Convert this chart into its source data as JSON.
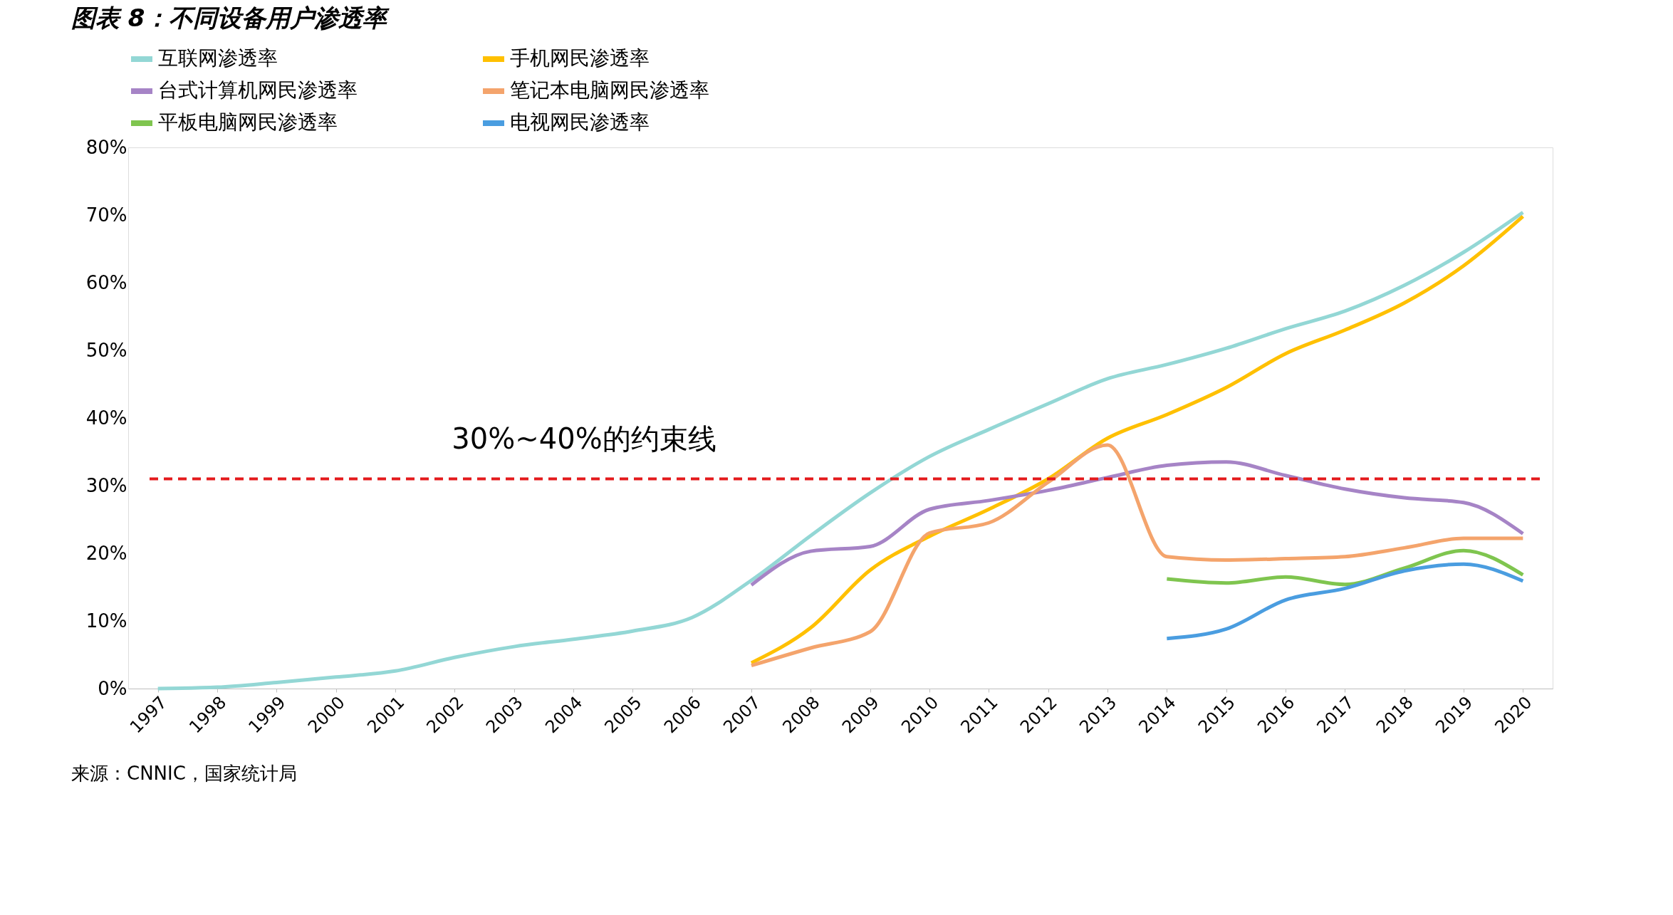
{
  "chart_data": {
    "type": "line",
    "title": "图表 8：不同设备用户渗透率",
    "categories": [
      "1997",
      "1998",
      "1999",
      "2000",
      "2001",
      "2002",
      "2003",
      "2004",
      "2005",
      "2006",
      "2007",
      "2008",
      "2009",
      "2010",
      "2011",
      "2012",
      "2013",
      "2014",
      "2015",
      "2016",
      "2017",
      "2018",
      "2019",
      "2020"
    ],
    "series": [
      {
        "name": "互联网渗透率",
        "color": "#93d7d5",
        "values": [
          0,
          0.2,
          0.9,
          1.7,
          2.6,
          4.6,
          6.2,
          7.3,
          8.5,
          10.5,
          16.0,
          22.6,
          28.9,
          34.3,
          38.3,
          42.1,
          45.8,
          47.9,
          50.3,
          53.2,
          55.8,
          59.6,
          64.5,
          70.4
        ]
      },
      {
        "name": "手机网民渗透率",
        "color": "#ffc000",
        "values": [
          null,
          null,
          null,
          null,
          null,
          null,
          null,
          null,
          null,
          null,
          3.8,
          9.0,
          17.5,
          22.5,
          26.5,
          31.0,
          37.0,
          40.5,
          44.5,
          49.5,
          53.0,
          57.0,
          62.5,
          69.8
        ]
      },
      {
        "name": "台式计算机网民渗透率",
        "color": "#a684c6",
        "values": [
          null,
          null,
          null,
          null,
          null,
          null,
          null,
          null,
          null,
          null,
          15.3,
          20.3,
          21.0,
          26.5,
          27.8,
          29.3,
          31.2,
          33.0,
          33.5,
          31.5,
          29.5,
          28.2,
          27.5,
          22.9
        ]
      },
      {
        "name": "笔记本电脑网民渗透率",
        "color": "#f4a46c",
        "values": [
          null,
          null,
          null,
          null,
          null,
          null,
          null,
          null,
          null,
          null,
          3.4,
          6.0,
          8.4,
          23.0,
          24.5,
          30.5,
          36.0,
          19.5,
          19.0,
          19.2,
          19.5,
          20.8,
          22.2,
          22.2
        ]
      },
      {
        "name": "平板电脑网民渗透率",
        "color": "#7fc54f",
        "values": [
          null,
          null,
          null,
          null,
          null,
          null,
          null,
          null,
          null,
          null,
          null,
          null,
          null,
          null,
          null,
          null,
          null,
          16.2,
          15.6,
          16.5,
          15.4,
          17.8,
          20.4,
          16.8
        ]
      },
      {
        "name": "电视网民渗透率",
        "color": "#4a9de0",
        "values": [
          null,
          null,
          null,
          null,
          null,
          null,
          null,
          null,
          null,
          null,
          null,
          null,
          null,
          null,
          null,
          null,
          null,
          7.4,
          8.8,
          13.1,
          14.8,
          17.4,
          18.4,
          15.9
        ]
      }
    ],
    "ylim": [
      0,
      80
    ],
    "yticks": [
      {
        "value": 0,
        "label": "0%"
      },
      {
        "value": 10,
        "label": "10%"
      },
      {
        "value": 20,
        "label": "20%"
      },
      {
        "value": 30,
        "label": "30%"
      },
      {
        "value": 40,
        "label": "40%"
      },
      {
        "value": 50,
        "label": "50%"
      },
      {
        "value": 60,
        "label": "60%"
      },
      {
        "value": 70,
        "label": "70%"
      },
      {
        "value": 80,
        "label": "80%"
      }
    ],
    "ref_lines": [
      {
        "axis": "y",
        "value": 31,
        "label": "30%~40%的约束线",
        "color": "#e41a1c",
        "line_style": "dashed"
      }
    ],
    "annotations": [
      "来源：CNNIC，国家统计局"
    ],
    "grid": false,
    "legend": "top",
    "marker": "none",
    "line_style": "solid"
  }
}
